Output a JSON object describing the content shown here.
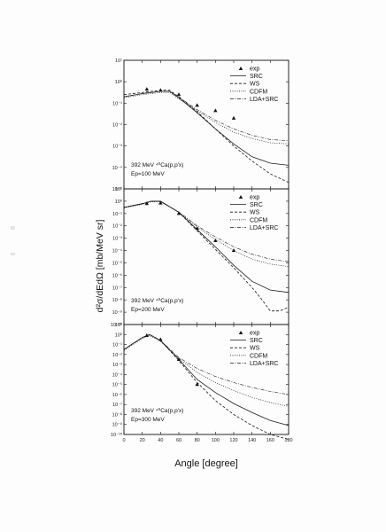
{
  "figure": {
    "ylabel": "d²σ/dEdΩ [mb/MeV sr]",
    "xlabel": "Angle [degree]"
  },
  "chart_data": [
    {
      "type": "line",
      "annotation": "392 MeV ⁴⁰Ca(p,p'x)",
      "energy_label": "Ep=100 MeV",
      "xlim": [
        0,
        180
      ],
      "ylim_log10": [
        -5,
        1
      ],
      "y_tick_labels": [
        "10¹",
        "10⁰",
        "10⁻¹",
        "10⁻²",
        "10⁻³",
        "10⁻⁴",
        "10⁻⁵"
      ],
      "legend": [
        "exp",
        "SRC",
        "WS",
        "CDFM",
        "LDA+SRC"
      ],
      "series": [
        {
          "name": "exp",
          "style": "triangle",
          "x": [
            25,
            40,
            60,
            80,
            100,
            120
          ],
          "log10_y": [
            -0.35,
            -0.4,
            -0.6,
            -1.1,
            -1.35,
            -1.7
          ]
        },
        {
          "name": "SRC",
          "style": "solid",
          "x": [
            0,
            20,
            40,
            50,
            60,
            80,
            100,
            120,
            140,
            160,
            180
          ],
          "log10_y": [
            -0.7,
            -0.55,
            -0.45,
            -0.45,
            -0.75,
            -1.45,
            -2.2,
            -2.9,
            -3.5,
            -3.8,
            -3.9
          ]
        },
        {
          "name": "WS",
          "style": "dashed",
          "x": [
            0,
            20,
            40,
            50,
            60,
            80,
            100,
            120,
            140,
            160,
            180
          ],
          "log10_y": [
            -0.6,
            -0.5,
            -0.4,
            -0.4,
            -0.7,
            -1.4,
            -2.2,
            -3.0,
            -3.7,
            -4.3,
            -4.7
          ]
        },
        {
          "name": "CDFM",
          "style": "dotted",
          "x": [
            0,
            20,
            40,
            50,
            60,
            80,
            100,
            120,
            140,
            160,
            180
          ],
          "log10_y": [
            -0.75,
            -0.6,
            -0.5,
            -0.5,
            -0.8,
            -1.35,
            -1.9,
            -2.35,
            -2.65,
            -2.85,
            -2.9
          ]
        },
        {
          "name": "LDA+SRC",
          "style": "dashdot",
          "x": [
            0,
            20,
            40,
            50,
            60,
            80,
            100,
            120,
            140,
            160,
            180
          ],
          "log10_y": [
            -0.7,
            -0.55,
            -0.45,
            -0.45,
            -0.72,
            -1.3,
            -1.8,
            -2.2,
            -2.5,
            -2.7,
            -2.75
          ]
        }
      ]
    },
    {
      "type": "line",
      "annotation": "392 MeV ⁴⁰Ca(p,p'x)",
      "energy_label": "Ep=200 MeV",
      "xlim": [
        0,
        180
      ],
      "ylim_log10": [
        -10,
        1
      ],
      "y_tick_labels": [
        "10¹",
        "10⁰",
        "10⁻¹",
        "10⁻²",
        "10⁻³",
        "10⁻⁴",
        "10⁻⁵",
        "10⁻⁶",
        "10⁻⁷",
        "10⁻⁸",
        "10⁻⁹",
        "10⁻¹⁰"
      ],
      "legend": [
        "exp",
        "SRC",
        "WS",
        "CDFM",
        "LDA+SRC"
      ],
      "series": [
        {
          "name": "exp",
          "style": "triangle",
          "x": [
            25,
            40,
            60,
            80,
            100,
            120
          ],
          "log10_y": [
            -0.2,
            -0.15,
            -1.0,
            -2.2,
            -3.2,
            -4.0
          ]
        },
        {
          "name": "SRC",
          "style": "solid",
          "x": [
            0,
            20,
            30,
            40,
            60,
            80,
            100,
            120,
            140,
            160,
            180
          ],
          "log10_y": [
            -0.5,
            -0.2,
            0.0,
            0.0,
            -0.9,
            -2.3,
            -3.7,
            -5.2,
            -6.5,
            -7.2,
            -7.4
          ]
        },
        {
          "name": "WS",
          "style": "dashed",
          "x": [
            0,
            20,
            30,
            40,
            60,
            80,
            100,
            120,
            140,
            150,
            160,
            170,
            180
          ],
          "log10_y": [
            -0.5,
            -0.2,
            0.0,
            0.0,
            -0.9,
            -2.4,
            -3.9,
            -5.4,
            -7.0,
            -7.9,
            -8.9,
            -8.9,
            -8.6
          ]
        },
        {
          "name": "CDFM",
          "style": "dotted",
          "x": [
            0,
            20,
            30,
            40,
            60,
            80,
            100,
            120,
            140,
            160,
            180
          ],
          "log10_y": [
            -0.55,
            -0.25,
            -0.05,
            -0.05,
            -0.9,
            -2.1,
            -3.1,
            -4.0,
            -4.7,
            -5.1,
            -5.3
          ]
        },
        {
          "name": "LDA+SRC",
          "style": "dashdot",
          "x": [
            0,
            20,
            30,
            40,
            60,
            80,
            100,
            120,
            140,
            160,
            180
          ],
          "log10_y": [
            -0.5,
            -0.22,
            -0.02,
            -0.02,
            -0.88,
            -2.0,
            -2.9,
            -3.7,
            -4.3,
            -4.7,
            -4.9
          ]
        }
      ]
    },
    {
      "type": "line",
      "annotation": "392 MeV ⁴⁰Ca(p,p'x)",
      "energy_label": "Ep=300 MeV",
      "xlim": [
        0,
        180
      ],
      "ylim_log10": [
        -10,
        1
      ],
      "y_tick_labels": [
        "10¹",
        "10⁰",
        "10⁻¹",
        "10⁻²",
        "10⁻³",
        "10⁻⁴",
        "10⁻⁵",
        "10⁻⁶",
        "10⁻⁷",
        "10⁻⁸",
        "10⁻⁹",
        "10⁻¹⁰"
      ],
      "legend": [
        "exp",
        "SRC",
        "WS",
        "CDFM",
        "LDA+SRC"
      ],
      "series": [
        {
          "name": "exp",
          "style": "triangle",
          "x": [
            25,
            40,
            60,
            80
          ],
          "log10_y": [
            -0.1,
            -0.5,
            -2.5,
            -5.0
          ]
        },
        {
          "name": "SRC",
          "style": "solid",
          "x": [
            0,
            10,
            20,
            28,
            40,
            60,
            80,
            100,
            120,
            140,
            160,
            180
          ],
          "log10_y": [
            -1.5,
            -0.9,
            -0.3,
            0.0,
            -0.6,
            -2.5,
            -4.5,
            -5.8,
            -6.9,
            -7.8,
            -8.6,
            -9.1
          ]
        },
        {
          "name": "WS",
          "style": "dashed",
          "x": [
            0,
            10,
            20,
            28,
            40,
            60,
            80,
            100,
            120,
            140,
            160,
            180
          ],
          "log10_y": [
            -1.5,
            -0.9,
            -0.3,
            0.0,
            -0.6,
            -2.6,
            -4.8,
            -6.6,
            -8.0,
            -9.1,
            -10.0,
            -10.5
          ]
        },
        {
          "name": "CDFM",
          "style": "dotted",
          "x": [
            0,
            10,
            20,
            28,
            40,
            60,
            80,
            100,
            120,
            140,
            160,
            180
          ],
          "log10_y": [
            -1.6,
            -1.0,
            -0.4,
            -0.1,
            -0.7,
            -2.4,
            -3.8,
            -4.8,
            -5.6,
            -6.3,
            -6.8,
            -7.2
          ]
        },
        {
          "name": "LDA+SRC",
          "style": "dashdot",
          "x": [
            0,
            10,
            20,
            28,
            40,
            60,
            80,
            100,
            120,
            140,
            160,
            180
          ],
          "log10_y": [
            -1.5,
            -0.9,
            -0.3,
            0.0,
            -0.6,
            -2.3,
            -3.4,
            -4.2,
            -4.8,
            -5.3,
            -5.7,
            -6.0
          ]
        }
      ],
      "x_tick_labels": [
        "0",
        "20",
        "40",
        "60",
        "80",
        "100",
        "120",
        "140",
        "160",
        "180"
      ]
    }
  ]
}
